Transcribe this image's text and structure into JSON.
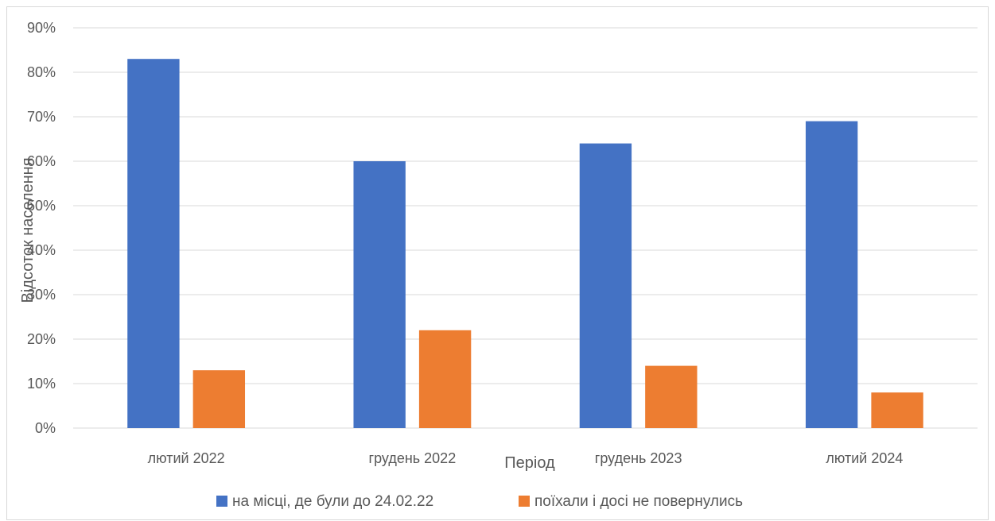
{
  "chart_data": {
    "type": "bar",
    "categories": [
      "лютий 2022",
      "грудень 2022",
      "грудень 2023",
      "лютий 2024"
    ],
    "series": [
      {
        "name": "на місці, де були до 24.02.22",
        "values": [
          83,
          60,
          64,
          69
        ],
        "color": "#4472C4"
      },
      {
        "name": "поїхали і досі не повернулись",
        "values": [
          13,
          22,
          14,
          8
        ],
        "color": "#ED7D31"
      }
    ],
    "xlabel": "Період",
    "ylabel": "Відсоток населення",
    "ylim": [
      0,
      90
    ],
    "yticks": [
      "0%",
      "10%",
      "20%",
      "30%",
      "40%",
      "50%",
      "60%",
      "70%",
      "80%",
      "90%"
    ],
    "grid": true,
    "legend_position": "bottom"
  }
}
